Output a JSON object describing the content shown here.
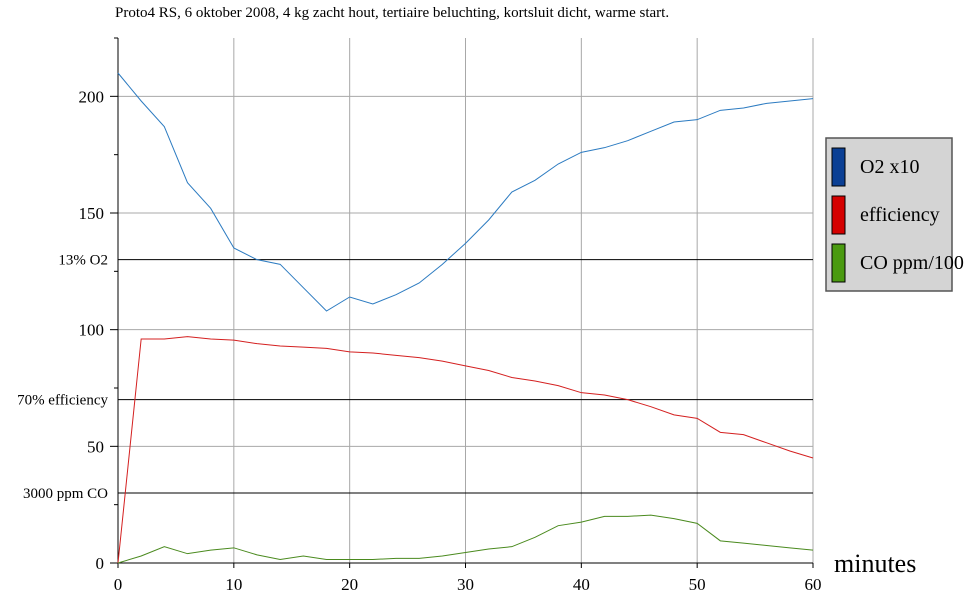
{
  "chart_data": {
    "type": "line",
    "title": "Proto4 RS, 6 oktober 2008, 4 kg zacht hout, tertiaire beluchting, kortsluit dicht, warme start.",
    "xlabel": "minutes",
    "ylabel": "",
    "xlim": [
      0,
      60
    ],
    "ylim": [
      0,
      225
    ],
    "grid": true,
    "legend_position": "right",
    "x_ticks": [
      "0",
      "10",
      "20",
      "30",
      "40",
      "50",
      "60"
    ],
    "y_ticks": [
      {
        "value": 0,
        "label": "0"
      },
      {
        "value": 50,
        "label": "50"
      },
      {
        "value": 100,
        "label": "100"
      },
      {
        "value": 150,
        "label": "150"
      },
      {
        "value": 200,
        "label": "200"
      }
    ],
    "y_minor": [
      25,
      75,
      125,
      175,
      225
    ],
    "reference_lines": [
      {
        "value": 130,
        "label": "13% O2"
      },
      {
        "value": 70,
        "label": "70% efficiency"
      },
      {
        "value": 30,
        "label": "3000 ppm CO"
      }
    ],
    "series": [
      {
        "name": "O2 x10",
        "color": "#2c7bc1",
        "legend_color": "#0a3f94",
        "x": [
          0,
          2,
          4,
          6,
          8,
          10,
          12,
          14,
          16,
          18,
          20,
          22,
          24,
          26,
          28,
          30,
          32,
          34,
          36,
          38,
          40,
          42,
          44,
          46,
          48,
          50,
          52,
          54,
          56,
          58,
          60
        ],
        "y": [
          210,
          198,
          187,
          163,
          152,
          135,
          130,
          128,
          118,
          108,
          114,
          111,
          115,
          120,
          128,
          137,
          147,
          159,
          164,
          171,
          176,
          178,
          181,
          185,
          189,
          190,
          194,
          195,
          197,
          198,
          199
        ]
      },
      {
        "name": "efficiency",
        "color": "#d42020",
        "legend_color": "#d40000",
        "x": [
          0,
          2,
          4,
          6,
          8,
          10,
          12,
          14,
          16,
          18,
          20,
          22,
          24,
          26,
          28,
          30,
          32,
          34,
          36,
          38,
          40,
          42,
          44,
          46,
          48,
          50,
          52,
          54,
          56,
          58,
          60
        ],
        "y": [
          0,
          96,
          96,
          97,
          96,
          95.5,
          94,
          93,
          92.5,
          92,
          90.5,
          90,
          89,
          88,
          86.5,
          84.5,
          82.5,
          79.5,
          78,
          76,
          73,
          72,
          70,
          67,
          63.5,
          62,
          56,
          55,
          51.5,
          48,
          45
        ]
      },
      {
        "name": "CO ppm/100",
        "color": "#4a8a1e",
        "legend_color": "#4a9a10",
        "x": [
          0,
          2,
          4,
          6,
          8,
          10,
          12,
          14,
          16,
          18,
          20,
          22,
          24,
          26,
          28,
          30,
          32,
          34,
          36,
          38,
          40,
          42,
          44,
          46,
          48,
          50,
          52,
          54,
          56,
          58,
          60
        ],
        "y": [
          0,
          3,
          7,
          4,
          5.5,
          6.5,
          3.5,
          1.5,
          3,
          1.5,
          1.5,
          1.5,
          2,
          2,
          3,
          4.5,
          6,
          7,
          11,
          16,
          17.5,
          20,
          20,
          20.5,
          19,
          17,
          9.5,
          8.5,
          7.5,
          6.5,
          5.5
        ]
      }
    ]
  }
}
